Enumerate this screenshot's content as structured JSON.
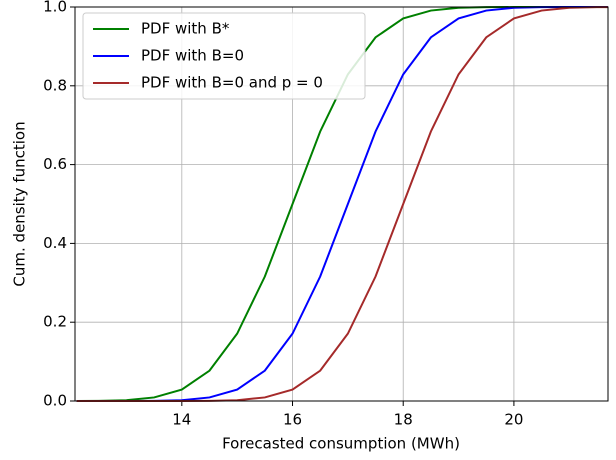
{
  "chart_data": {
    "type": "line",
    "xlabel": "Forecasted consumption (MWh)",
    "ylabel": "Cum. density function",
    "x": [
      12.1,
      12.5,
      13,
      13.5,
      14,
      14.5,
      15,
      15.5,
      16,
      16.5,
      17,
      17.5,
      18,
      18.5,
      19,
      19.5,
      20,
      20.5,
      21,
      21.5,
      21.7
    ],
    "series": [
      {
        "name": "PDF with B*",
        "color": "#008000",
        "values": [
          0.0001,
          0.0004,
          0.002,
          0.009,
          0.029,
          0.077,
          0.171,
          0.316,
          0.5,
          0.684,
          0.829,
          0.923,
          0.971,
          0.991,
          0.998,
          0.9996,
          0.9999,
          1,
          1,
          1,
          1
        ]
      },
      {
        "name": "PDF with B=0",
        "color": "#0000ff",
        "values": [
          0,
          0,
          0.0001,
          0.0004,
          0.002,
          0.009,
          0.029,
          0.077,
          0.171,
          0.316,
          0.5,
          0.684,
          0.829,
          0.923,
          0.971,
          0.991,
          0.998,
          0.9996,
          0.9999,
          1,
          1
        ]
      },
      {
        "name": "PDF with B=0 and p = 0",
        "color": "#a52a2a",
        "values": [
          0,
          0,
          0,
          0,
          0.0001,
          0.0004,
          0.002,
          0.009,
          0.029,
          0.077,
          0.171,
          0.316,
          0.5,
          0.684,
          0.829,
          0.923,
          0.971,
          0.991,
          0.998,
          0.9996,
          0.9998
        ]
      }
    ],
    "xlim": [
      12.07,
      21.7
    ],
    "ylim": [
      0,
      1
    ],
    "xticks": [
      14,
      16,
      18,
      20
    ],
    "yticks": [
      {
        "value": 0,
        "label": "0.0"
      },
      0.2,
      0.4,
      0.6,
      0.8,
      {
        "value": 1,
        "label": "1.0"
      }
    ],
    "grid": true,
    "legend": "upper-left"
  }
}
